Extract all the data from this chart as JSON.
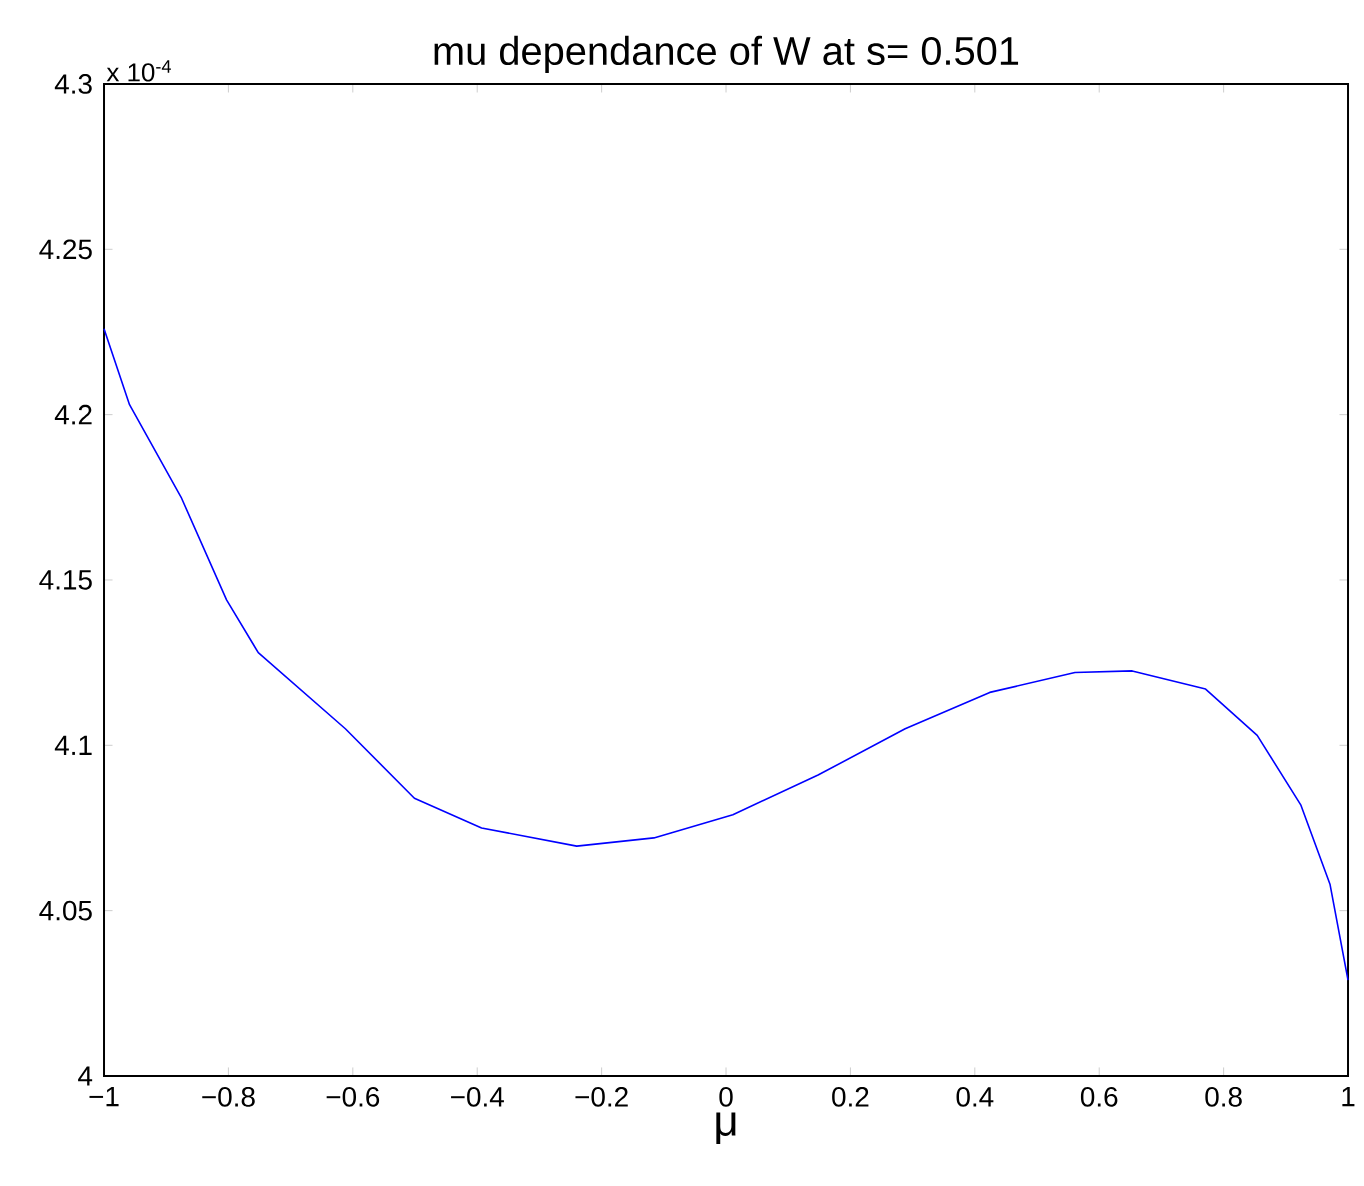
{
  "chart_data": {
    "type": "line",
    "title": "mu dependance of W at s= 0.501",
    "xlabel": "μ",
    "annotations": [
      "x 10$^{-4}$"
    ],
    "x": [
      -1,
      -0.959,
      -0.876,
      -0.803,
      -0.752,
      -0.612,
      -0.501,
      -0.393,
      -0.24,
      -0.116,
      0.011,
      0.148,
      0.288,
      0.424,
      0.561,
      0.653,
      0.771,
      0.854,
      0.924,
      0.971,
      1
    ],
    "series": [
      {
        "color": "#0000ff",
        "values": [
          4.226,
          4.203,
          4.175,
          4.144,
          4.128,
          4.105,
          4.084,
          4.075,
          4.0695,
          4.072,
          4.079,
          4.091,
          4.105,
          4.116,
          4.122,
          4.1225,
          4.117,
          4.103,
          4.082,
          4.058,
          4.029
        ]
      }
    ],
    "xlim": [
      -1,
      1
    ],
    "ylim": [
      4,
      4.3
    ],
    "xticks": [
      {
        "value": -1,
        "label": "−1"
      },
      {
        "value": -0.8,
        "label": "−0.8"
      },
      {
        "value": -0.6,
        "label": "−0.6"
      },
      {
        "value": -0.4,
        "label": "−0.4"
      },
      {
        "value": -0.2,
        "label": "−0.2"
      },
      0,
      0.2,
      0.4,
      0.6,
      0.8,
      1
    ],
    "yticks": [
      4,
      4.05,
      4.1,
      4.15,
      4.2,
      4.25,
      4.3
    ],
    "grid": false,
    "marker": "none",
    "line_style": "solid"
  }
}
